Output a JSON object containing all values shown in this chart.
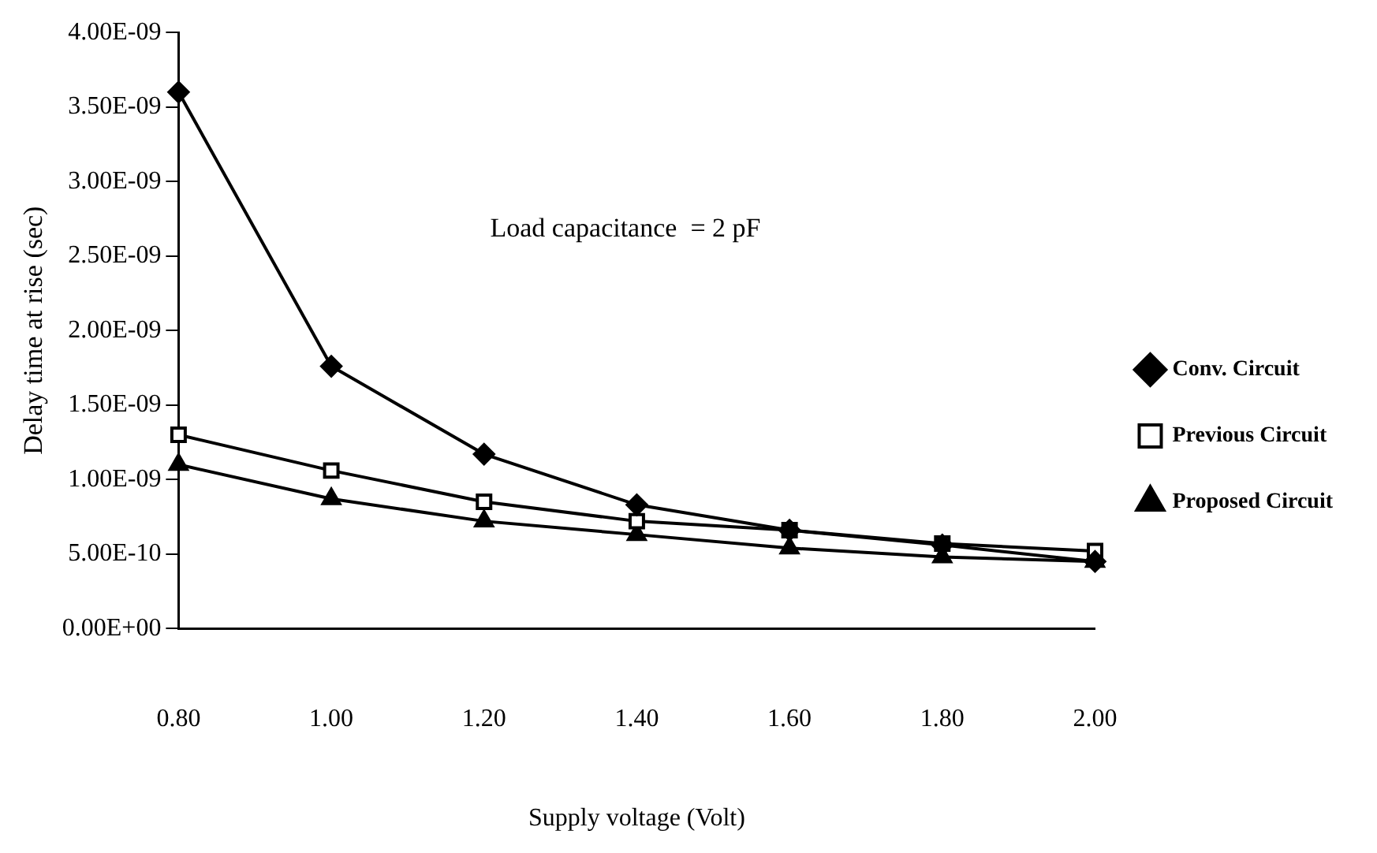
{
  "chart_data": {
    "type": "line",
    "xlabel": "Supply voltage (Volt)",
    "ylabel": "Delay time at rise (sec)",
    "categories": [
      "0.80",
      "1.00",
      "1.20",
      "1.40",
      "1.60",
      "1.80",
      "2.00"
    ],
    "series": [
      {
        "name": "Conv. Circuit",
        "color": "#000000",
        "marker": "diamond",
        "values": [
          3.6e-09,
          1.76e-09,
          1.17e-09,
          8.3e-10,
          6.6e-10,
          5.6e-10,
          4.5e-10
        ]
      },
      {
        "name": "Previous Circuit",
        "color": "#000000",
        "marker": "square",
        "values": [
          1.3e-09,
          1.06e-09,
          8.5e-10,
          7.2e-10,
          6.6e-10,
          5.7e-10,
          5.2e-10
        ]
      },
      {
        "name": "Proposed Circuit",
        "color": "#000000",
        "marker": "triangle",
        "values": [
          1.1e-09,
          8.7e-10,
          7.2e-10,
          6.3e-10,
          5.4e-10,
          4.8e-10,
          4.5e-10
        ]
      }
    ],
    "ylim": [
      0,
      4e-09
    ],
    "yticks": [
      {
        "value": 0,
        "label": "0.00E+00"
      },
      {
        "value": 5e-10,
        "label": "5.00E-10"
      },
      {
        "value": 1e-09,
        "label": "1.00E-09"
      },
      {
        "value": 1.5e-09,
        "label": "1.50E-09"
      },
      {
        "value": 2e-09,
        "label": "2.00E-09"
      },
      {
        "value": 2.5e-09,
        "label": "2.50E-09"
      },
      {
        "value": 3e-09,
        "label": "3.00E-09"
      },
      {
        "value": 3.5e-09,
        "label": "3.50E-09"
      },
      {
        "value": 4e-09,
        "label": "4.00E-09"
      }
    ],
    "grid": false,
    "legend": "right",
    "line_style": "solid",
    "annotations": [
      "Load capacitance  = 2 pF"
    ]
  }
}
